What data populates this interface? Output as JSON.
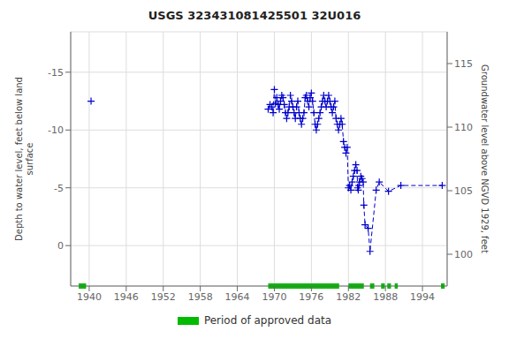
{
  "chart_data": {
    "type": "scatter",
    "title": "USGS 323431081425501 32U016",
    "y_label": "Depth to water level, feet below land\nsurface",
    "y2_label": "Groundwater level above NGVD 1929, feet",
    "xlim": [
      1937,
      1998
    ],
    "xticks": [
      1940,
      1946,
      1952,
      1958,
      1964,
      1970,
      1976,
      1982,
      1988,
      1994
    ],
    "ylim": [
      3.5,
      -18.5
    ],
    "yticks": [
      -15,
      -10,
      -5,
      0
    ],
    "y2lim": [
      97.5,
      117.5
    ],
    "y2ticks": [
      100,
      105,
      110,
      115
    ],
    "grid": true,
    "legend": "bottom",
    "series": [
      {
        "type": "scatter",
        "color": "#0000cc",
        "marker": "plus",
        "x": [
          1940.3
        ],
        "values": [
          -12.5
        ]
      },
      {
        "type": "line",
        "color": "#0000cc",
        "marker": "plus",
        "line_style": "dashed",
        "x": [
          1969.0,
          1969.3,
          1969.6,
          1969.8,
          1970.0,
          1970.2,
          1970.4,
          1970.6,
          1970.8,
          1971.0,
          1971.2,
          1971.4,
          1971.6,
          1971.8,
          1972.0,
          1972.2,
          1972.4,
          1972.6,
          1972.8,
          1973.0,
          1973.2,
          1973.4,
          1973.6,
          1973.8,
          1974.0,
          1974.2,
          1974.4,
          1974.6,
          1974.8,
          1975.0,
          1975.2,
          1975.4,
          1975.6,
          1975.8,
          1976.0,
          1976.2,
          1976.4,
          1976.6,
          1976.8,
          1977.0,
          1977.2,
          1977.4,
          1977.6,
          1977.8,
          1978.0,
          1978.2,
          1978.4,
          1978.6,
          1978.8,
          1979.0,
          1979.2,
          1979.4,
          1979.6,
          1979.8,
          1980.0,
          1980.2,
          1980.4,
          1980.6,
          1980.8,
          1981.0,
          1981.2,
          1981.4,
          1981.6,
          1981.8,
          1982.0,
          1982.2,
          1982.4,
          1982.6,
          1982.8,
          1983.0,
          1983.2,
          1983.4,
          1983.5,
          1983.6,
          1983.7,
          1983.8,
          1984.0,
          1984.2,
          1984.4,
          1984.5,
          1984.7,
          1985.2,
          1985.5,
          1986.5,
          1987.0,
          1988.5,
          1990.5,
          1997.2
        ],
        "values": [
          -11.8,
          -12.2,
          -12.0,
          -11.5,
          -13.5,
          -12.3,
          -12.8,
          -12.2,
          -11.8,
          -12.5,
          -13.0,
          -12.8,
          -12.2,
          -11.5,
          -11.0,
          -11.5,
          -12.0,
          -13.0,
          -12.5,
          -12.0,
          -11.5,
          -11.0,
          -12.0,
          -12.5,
          -11.5,
          -11.0,
          -10.5,
          -11.0,
          -11.5,
          -12.8,
          -13.0,
          -12.5,
          -12.0,
          -12.8,
          -13.2,
          -12.5,
          -11.5,
          -10.5,
          -10.0,
          -10.5,
          -11.0,
          -11.5,
          -12.0,
          -12.5,
          -13.0,
          -12.5,
          -12.0,
          -12.5,
          -13.0,
          -12.5,
          -12.0,
          -11.5,
          -12.0,
          -12.5,
          -11.0,
          -10.5,
          -10.0,
          -10.5,
          -11.0,
          -10.5,
          -9.0,
          -8.5,
          -8.0,
          -8.5,
          -5.0,
          -5.2,
          -4.8,
          -5.5,
          -6.0,
          -6.5,
          -7.0,
          -6.5,
          -5.0,
          -4.8,
          -5.2,
          -5.5,
          -6.0,
          -5.8,
          -5.5,
          -3.5,
          -1.8,
          -1.5,
          0.5,
          -4.8,
          -5.5,
          -4.7,
          -5.2,
          -5.2
        ]
      }
    ],
    "approved_data": {
      "name": "Period of approved data",
      "color": "#00bb00",
      "ranges": [
        [
          1938.3,
          1939.5
        ],
        [
          1969.0,
          1980.5
        ],
        [
          1982.0,
          1984.5
        ],
        [
          1985.5,
          1986.2
        ],
        [
          1987.3,
          1987.9
        ],
        [
          1988.3,
          1988.9
        ],
        [
          1989.5,
          1990.0
        ],
        [
          1997.0,
          1997.6
        ]
      ]
    }
  }
}
